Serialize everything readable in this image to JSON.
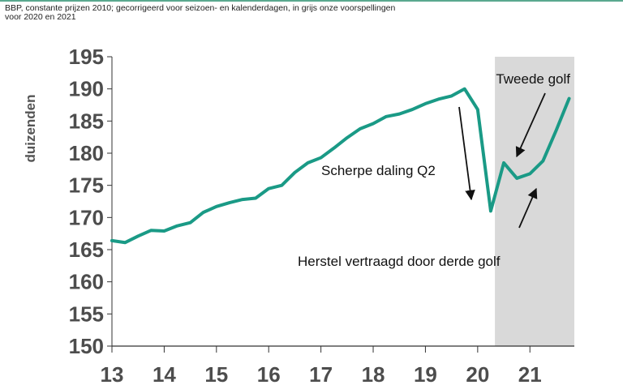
{
  "subtitle": "BBP, constante prijzen 2010;  gecorrigeerd  voor seizoen- en kalenderdagen,   in grijs onze  voorspellingen\nvoor 2020  en 2021",
  "chart_data": {
    "type": "line",
    "ylabel": "duizenden",
    "ylim": [
      150,
      195
    ],
    "yticks": [
      150,
      155,
      160,
      165,
      170,
      175,
      180,
      185,
      190,
      195
    ],
    "xlim": [
      2013,
      2021.85
    ],
    "xticks": [
      {
        "value": 2013,
        "label": "13"
      },
      {
        "value": 2014,
        "label": "14"
      },
      {
        "value": 2015,
        "label": "15"
      },
      {
        "value": 2016,
        "label": "16"
      },
      {
        "value": 2017,
        "label": "17"
      },
      {
        "value": 2018,
        "label": "18"
      },
      {
        "value": 2019,
        "label": "19"
      },
      {
        "value": 2020,
        "label": "20"
      },
      {
        "value": 2021,
        "label": "21"
      }
    ],
    "forecast_region": {
      "from": 2020.33,
      "to": 2021.85,
      "color": "#d9d9d9"
    },
    "series": [
      {
        "color": "#1a9a86",
        "x": [
          2013.0,
          2013.25,
          2013.5,
          2013.75,
          2014.0,
          2014.25,
          2014.5,
          2014.75,
          2015.0,
          2015.25,
          2015.5,
          2015.75,
          2016.0,
          2016.25,
          2016.5,
          2016.75,
          2017.0,
          2017.25,
          2017.5,
          2017.75,
          2018.0,
          2018.25,
          2018.5,
          2018.75,
          2019.0,
          2019.25,
          2019.5,
          2019.75,
          2020.0,
          2020.25,
          2020.5,
          2020.75,
          2021.0,
          2021.25,
          2021.5,
          2021.75
        ],
        "values": [
          166.4,
          166.1,
          167.1,
          168.0,
          167.9,
          168.7,
          169.2,
          170.8,
          171.7,
          172.3,
          172.8,
          173.0,
          174.5,
          175.0,
          177.0,
          178.5,
          179.3,
          180.8,
          182.4,
          183.8,
          184.6,
          185.7,
          186.1,
          186.8,
          187.7,
          188.4,
          188.9,
          190.0,
          186.8,
          171.0,
          178.5,
          176.1,
          176.8,
          178.8,
          183.5,
          188.5
        ]
      }
    ],
    "annotations": [
      {
        "text": "Tweede golf"
      },
      {
        "text": "Scherpe daling Q2"
      },
      {
        "text": "Herstel vertraagd door derde golf"
      }
    ],
    "grid": false,
    "legend": "none"
  }
}
